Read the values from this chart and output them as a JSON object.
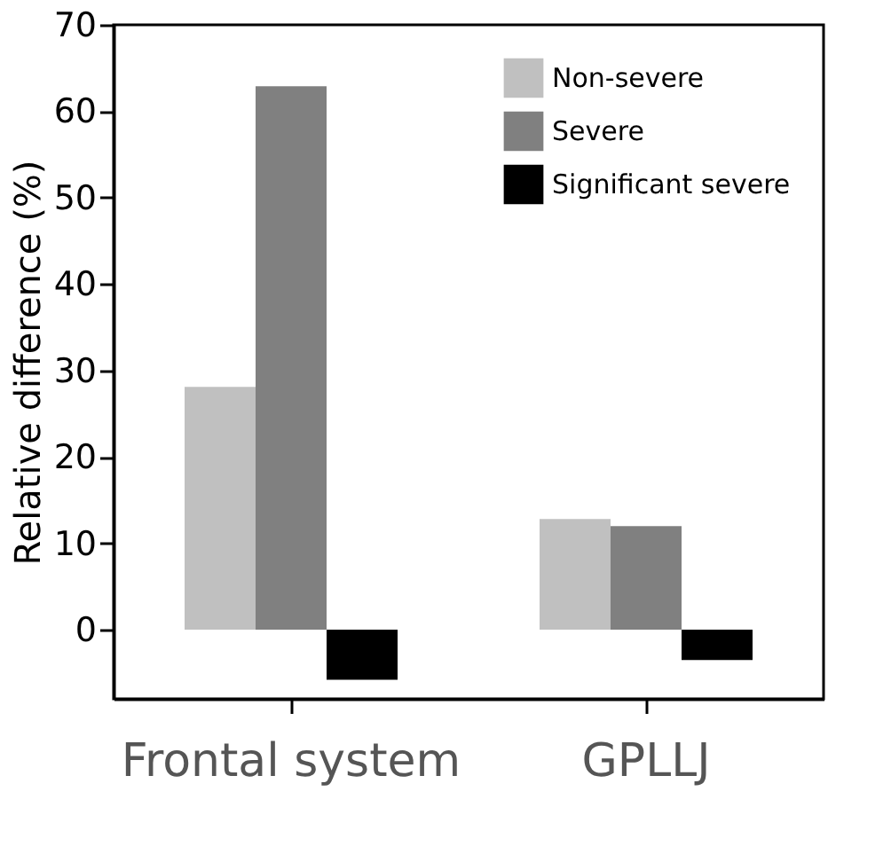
{
  "chart_data": {
    "type": "bar",
    "ylabel": "Relative difference (%)",
    "categories": [
      "Frontal system",
      "GPLLJ"
    ],
    "series": [
      {
        "name": "Non-severe",
        "color": "#c0c0c0",
        "values": [
          28.1,
          12.8
        ]
      },
      {
        "name": "Severe",
        "color": "#808080",
        "values": [
          62.9,
          12.0
        ]
      },
      {
        "name": "Significant severe",
        "color": "#000000",
        "values": [
          -5.8,
          -3.5
        ]
      }
    ],
    "ylim": [
      -8,
      70
    ],
    "yticks": [
      0,
      10,
      20,
      30,
      40,
      50,
      60,
      70
    ],
    "grid": false,
    "legend": "top right"
  }
}
